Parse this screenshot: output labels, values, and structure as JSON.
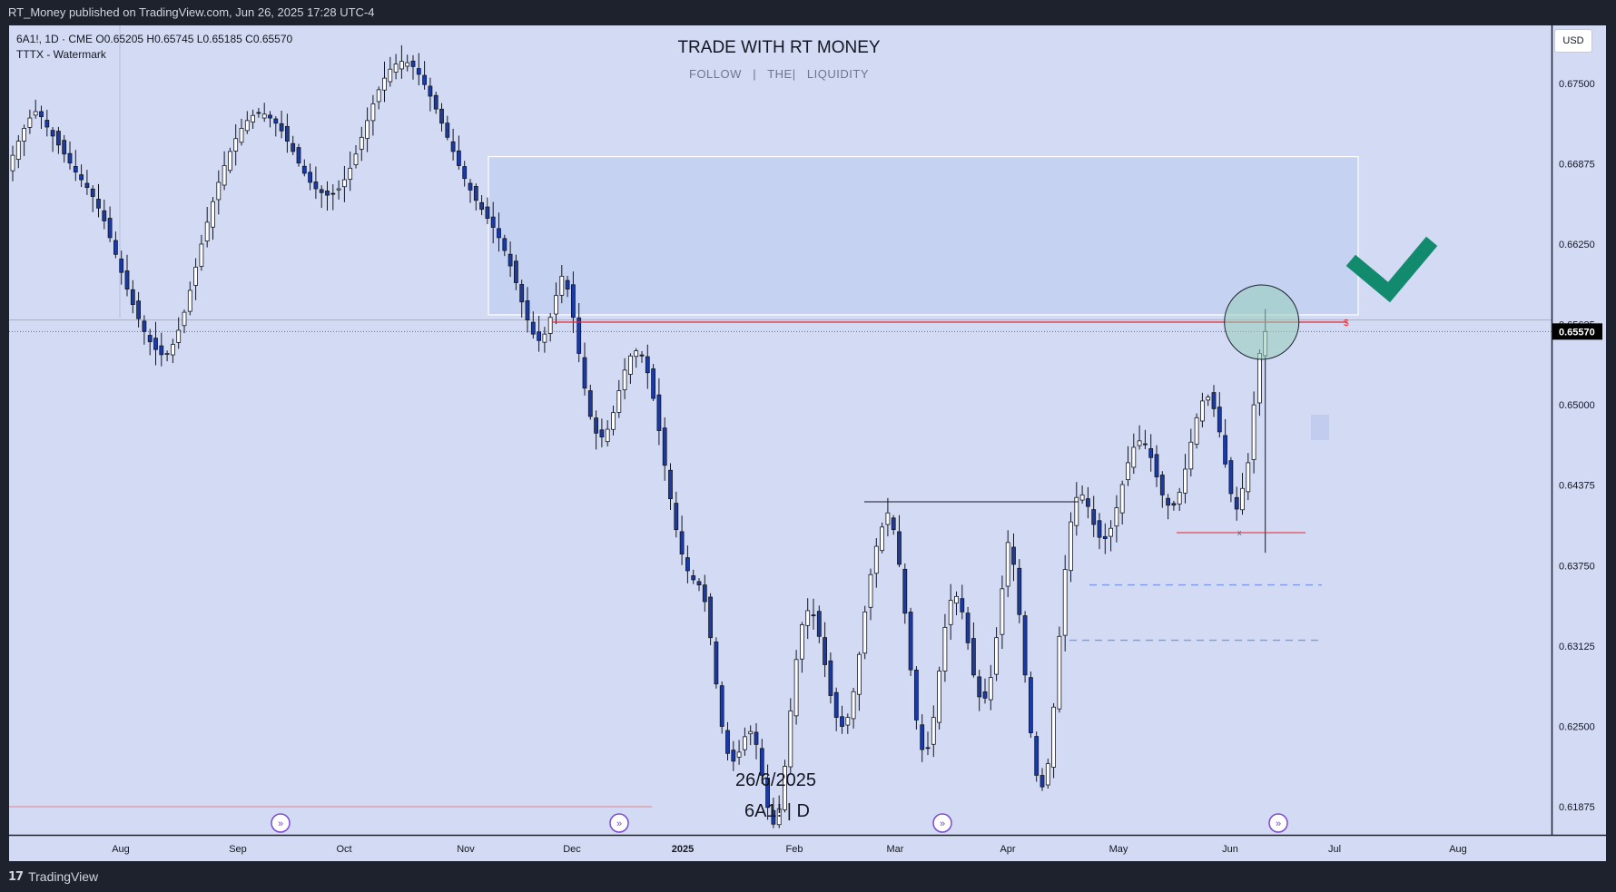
{
  "header": {
    "published": "RT_Money published on TradingView.com, Jun 26, 2025 17:28 UTC-4"
  },
  "legend": {
    "line1": "6A1!, 1D · CME O0.65205 H0.65745 L0.65185 C0.65570",
    "line2": "TTTX - Watermark"
  },
  "currency": "USD",
  "watermark": {
    "title": "TRADE WITH RT MONEY",
    "subtitle": "FOLLOW   |   THE|   LIQUIDITY"
  },
  "annotations": {
    "date": "26/6/2025",
    "symbol": "6A1! | D",
    "liquidity_mark": "$",
    "sweep_mark": "x"
  },
  "footer": {
    "brand": "TradingView"
  },
  "colors": {
    "down": "#1a3aa6",
    "up": "#ffffff",
    "background": "#d3daf3",
    "check": "#118a6e",
    "price_tag": "#000000"
  },
  "chart_data": {
    "type": "candlestick",
    "symbol": "6A1!",
    "timeframe": "1D",
    "x_ticks": [
      "Aug",
      "Sep",
      "Oct",
      "Nov",
      "Dec",
      "2025",
      "Feb",
      "Mar",
      "Apr",
      "May",
      "Jun",
      "Jul",
      "Aug"
    ],
    "y_ticks": [
      "0.67500",
      "0.66875",
      "0.66250",
      "0.65625",
      "0.65000",
      "0.64375",
      "0.63750",
      "0.63125",
      "0.62500",
      "0.61875"
    ],
    "ylim": [
      0.6165,
      0.6795
    ],
    "last_price": "0.65570",
    "ohlc_last": {
      "open": 0.65205,
      "high": 0.65745,
      "low": 0.65185,
      "close": 0.6557
    },
    "key_levels": {
      "swing_high_liquidity": 0.655,
      "resistance_zone": [
        0.657,
        0.6693
      ],
      "horizontal_line": 0.6566,
      "support_1": 0.636,
      "support_2": 0.6317,
      "swept_low": 0.6404
    },
    "closes": [
      0.6694,
      0.6705,
      0.6715,
      0.6723,
      0.6728,
      0.6724,
      0.6716,
      0.6709,
      0.6702,
      0.6695,
      0.6688,
      0.6681,
      0.6675,
      0.6669,
      0.6662,
      0.6653,
      0.6643,
      0.663,
      0.6617,
      0.6603,
      0.659,
      0.6578,
      0.6567,
      0.6557,
      0.6549,
      0.6543,
      0.6539,
      0.654,
      0.6547,
      0.6558,
      0.6572,
      0.6589,
      0.6607,
      0.6625,
      0.6642,
      0.6658,
      0.6673,
      0.6686,
      0.6697,
      0.6707,
      0.6715,
      0.6721,
      0.6725,
      0.6727,
      0.6726,
      0.6723,
      0.6719,
      0.6713,
      0.6705,
      0.6697,
      0.6688,
      0.668,
      0.6673,
      0.6668,
      0.6665,
      0.6663,
      0.6664,
      0.6668,
      0.6675,
      0.6684,
      0.6695,
      0.6708,
      0.6721,
      0.6734,
      0.6745,
      0.6754,
      0.6761,
      0.6765,
      0.6767,
      0.6766,
      0.6763,
      0.6757,
      0.6749,
      0.674,
      0.673,
      0.6719,
      0.6708,
      0.6697,
      0.6686,
      0.6676,
      0.6667,
      0.6659,
      0.6652,
      0.6645,
      0.6638,
      0.663,
      0.662,
      0.6608,
      0.6595,
      0.658,
      0.6566,
      0.6555,
      0.655,
      0.6555,
      0.6568,
      0.6585,
      0.66,
      0.659,
      0.6568,
      0.654,
      0.6513,
      0.6491,
      0.6478,
      0.6475,
      0.6481,
      0.6494,
      0.6511,
      0.6527,
      0.6538,
      0.6542,
      0.6538,
      0.6525,
      0.6505,
      0.648,
      0.6453,
      0.6427,
      0.6403,
      0.6384,
      0.6371,
      0.6364,
      0.636,
      0.6347,
      0.6319,
      0.6283,
      0.625,
      0.6229,
      0.6223,
      0.623,
      0.6242,
      0.6246,
      0.6236,
      0.6212,
      0.6187,
      0.6174,
      0.6186,
      0.6219,
      0.6262,
      0.6302,
      0.6329,
      0.634,
      0.6336,
      0.632,
      0.6298,
      0.6274,
      0.6257,
      0.625,
      0.6257,
      0.6277,
      0.6306,
      0.6339,
      0.6368,
      0.639,
      0.6405,
      0.6416,
      0.6403,
      0.6376,
      0.6338,
      0.6294,
      0.6255,
      0.6232,
      0.6233,
      0.6257,
      0.6293,
      0.6327,
      0.6348,
      0.6351,
      0.6339,
      0.6315,
      0.629,
      0.6273,
      0.6272,
      0.6288,
      0.6319,
      0.6357,
      0.6393,
      0.6376,
      0.6337,
      0.629,
      0.6245,
      0.6212,
      0.6203,
      0.6221,
      0.6265,
      0.632,
      0.6372,
      0.6409,
      0.6428,
      0.643,
      0.6421,
      0.6407,
      0.6397,
      0.6396,
      0.6404,
      0.642,
      0.6438,
      0.6455,
      0.6467,
      0.6472,
      0.6469,
      0.6459,
      0.6444,
      0.643,
      0.6422,
      0.6422,
      0.6432,
      0.645,
      0.6471,
      0.649,
      0.6503,
      0.6506,
      0.6497,
      0.6479,
      0.6454,
      0.6431,
      0.6419,
      0.6435,
      0.6455,
      0.65,
      0.654,
      0.6557
    ]
  }
}
